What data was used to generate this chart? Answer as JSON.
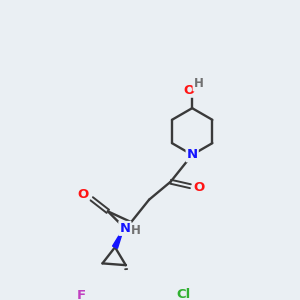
{
  "background_color": "#eaeff3",
  "bond_color": "#3a3a3a",
  "atom_colors": {
    "N": "#1414ff",
    "O": "#ff1414",
    "F": "#c040c0",
    "Cl": "#30b030",
    "H": "#707070"
  },
  "figsize": [
    3.0,
    3.0
  ],
  "dpi": 100
}
